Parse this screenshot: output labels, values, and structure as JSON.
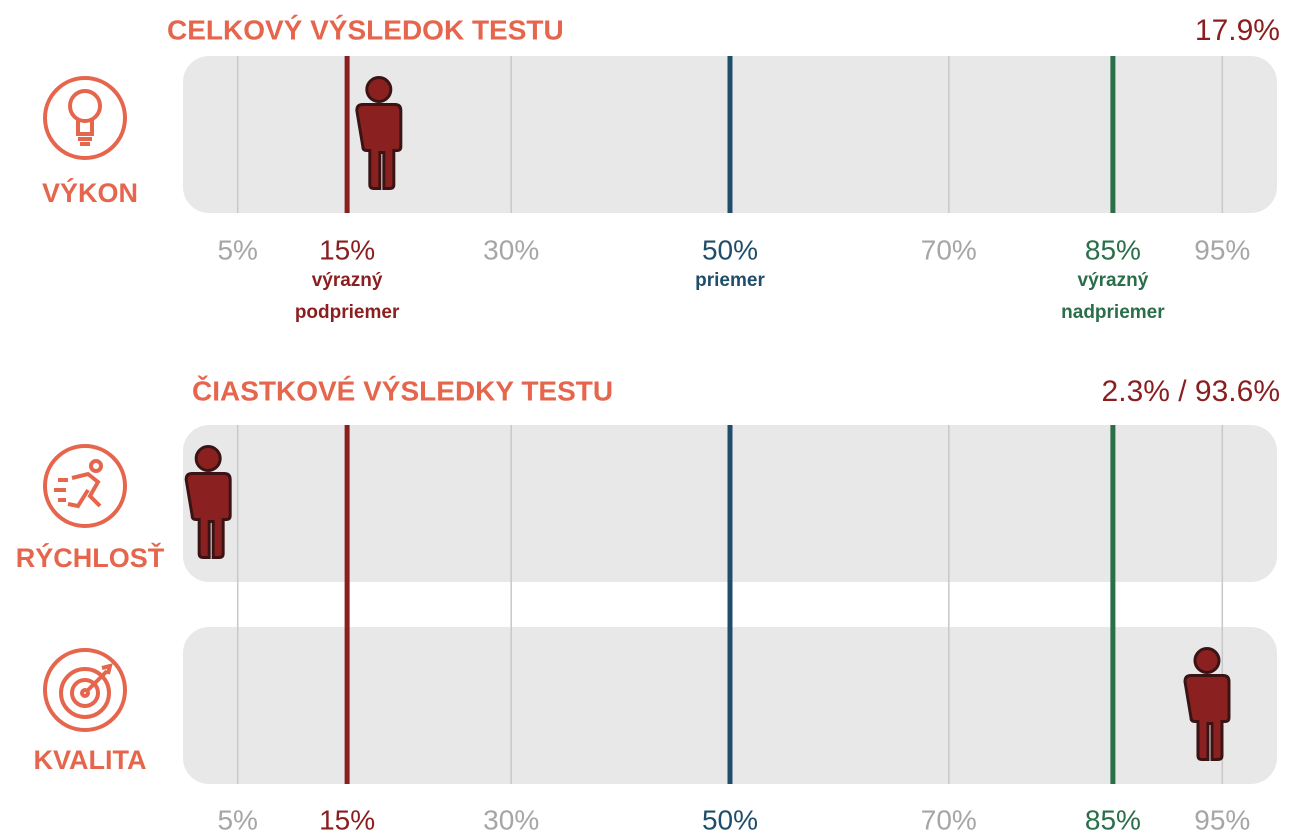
{
  "scale": {
    "xlim": [
      0,
      100
    ],
    "ticks": [
      {
        "value": 5,
        "label": "5%",
        "color": "#a6a6a6"
      },
      {
        "value": 15,
        "label": "15%",
        "color": "#8b1e1e",
        "note": [
          "výrazný",
          "podpriemer"
        ]
      },
      {
        "value": 30,
        "label": "30%",
        "color": "#a6a6a6"
      },
      {
        "value": 50,
        "label": "50%",
        "color": "#1f4e6b",
        "note": [
          "priemer"
        ]
      },
      {
        "value": 70,
        "label": "70%",
        "color": "#a6a6a6"
      },
      {
        "value": 85,
        "label": "85%",
        "color": "#2a6e4a",
        "note": [
          "výrazný",
          "nadpriemer"
        ]
      },
      {
        "value": 95,
        "label": "95%",
        "color": "#a6a6a6"
      }
    ]
  },
  "sections": [
    {
      "title": "CELKOVÝ VÝSLEDOK TESTU",
      "summary": "17.9%",
      "rows": [
        {
          "label": "VÝKON",
          "value": 17.9
        }
      ]
    },
    {
      "title": "ČIASTKOVÉ VÝSLEDKY TESTU",
      "summary": "2.3% / 93.6%",
      "rows": [
        {
          "label": "RÝCHLOSŤ",
          "value": 2.3
        },
        {
          "label": "KVALITA",
          "value": 93.6
        }
      ]
    }
  ]
}
